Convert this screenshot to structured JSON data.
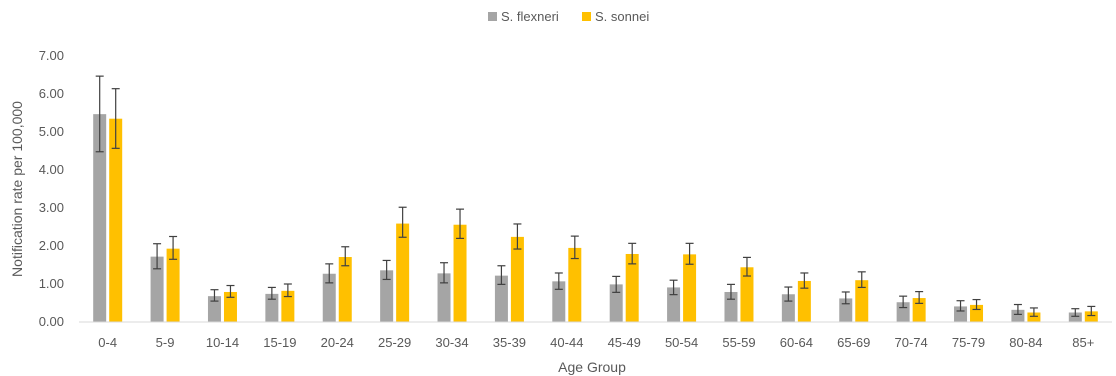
{
  "chart_data": {
    "type": "bar",
    "xlabel": "Age Group",
    "ylabel": "Notification rate per 100,000",
    "ylim": [
      0,
      7
    ],
    "yticks": [
      "0.00",
      "1.00",
      "2.00",
      "3.00",
      "4.00",
      "5.00",
      "6.00",
      "7.00"
    ],
    "legend_position": "top-center",
    "grid": false,
    "categories": [
      "0-4",
      "5-9",
      "10-14",
      "15-19",
      "20-24",
      "25-29",
      "30-34",
      "35-39",
      "40-44",
      "45-49",
      "50-54",
      "55-59",
      "60-64",
      "65-69",
      "70-74",
      "75-79",
      "80-84",
      "85+"
    ],
    "series": [
      {
        "name": "S. flexneri",
        "color": "#a5a5a5",
        "values": [
          5.47,
          1.72,
          0.68,
          0.74,
          1.27,
          1.36,
          1.28,
          1.22,
          1.07,
          0.99,
          0.91,
          0.79,
          0.73,
          0.62,
          0.52,
          0.41,
          0.32,
          0.25
        ],
        "error_low": [
          4.48,
          1.4,
          0.55,
          0.6,
          1.03,
          1.12,
          1.03,
          0.99,
          0.86,
          0.78,
          0.72,
          0.6,
          0.55,
          0.48,
          0.38,
          0.29,
          0.2,
          0.15
        ],
        "error_high": [
          6.47,
          2.06,
          0.85,
          0.91,
          1.53,
          1.62,
          1.56,
          1.48,
          1.29,
          1.2,
          1.1,
          0.99,
          0.92,
          0.79,
          0.68,
          0.56,
          0.46,
          0.35
        ]
      },
      {
        "name": "S. sonnei",
        "color": "#ffc000",
        "values": [
          5.35,
          1.93,
          0.79,
          0.82,
          1.71,
          2.59,
          2.56,
          2.24,
          1.95,
          1.79,
          1.78,
          1.44,
          1.08,
          1.1,
          0.63,
          0.45,
          0.25,
          0.28
        ],
        "error_low": [
          4.57,
          1.65,
          0.65,
          0.67,
          1.48,
          2.23,
          2.2,
          1.92,
          1.67,
          1.53,
          1.52,
          1.21,
          0.89,
          0.91,
          0.49,
          0.33,
          0.15,
          0.17
        ],
        "error_high": [
          6.14,
          2.25,
          0.96,
          1.0,
          1.98,
          3.02,
          2.97,
          2.58,
          2.26,
          2.07,
          2.07,
          1.7,
          1.29,
          1.32,
          0.8,
          0.59,
          0.37,
          0.41
        ]
      }
    ]
  }
}
